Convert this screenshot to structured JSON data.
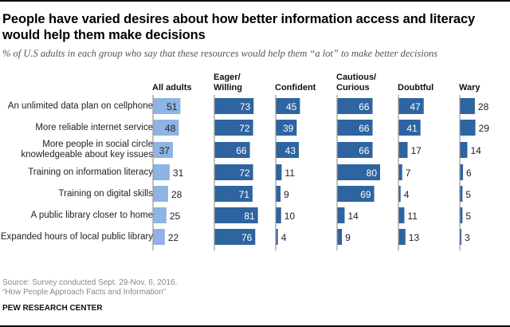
{
  "header": {
    "title": "People have varied desires about how better information access and literacy would help them make decisions",
    "subtitle": "% of U.S adults in each group who say that these resources would help them “a lot” to make better decisions"
  },
  "footer": {
    "source_line1": "Source: Survey conducted Sept. 29-Nov. 6, 2016.",
    "source_line2": "“How People Approach Facts and Information”",
    "brand": "PEW RESEARCH CENTER"
  },
  "colors": {
    "all_adults_bar": "#8db4e2",
    "group_bar": "#2e64a0",
    "axis": "#999999"
  },
  "chart_data": {
    "type": "bar",
    "orientation": "horizontal-small-multiples",
    "title": "People have varied desires about how better information access and literacy would help them make decisions",
    "subtitle": "% of U.S adults in each group who say that these resources would help them “a lot” to make better decisions",
    "xlabel": "",
    "ylabel": "",
    "xlim": [
      0,
      100
    ],
    "grid": false,
    "categories": [
      "An unlimited data plan on cellphone",
      "More reliable internet service",
      "More people in social circle knowledgeable about key issues",
      "Training on information literacy",
      "Training on digital skills",
      "A public library closer to home",
      "Expanded hours of local public library"
    ],
    "category_lines": [
      [
        "An unlimited data plan on cellphone"
      ],
      [
        "More reliable internet service"
      ],
      [
        "More people in social circle",
        "knowledgeable about key issues"
      ],
      [
        "Training on information literacy"
      ],
      [
        "Training on digital skills"
      ],
      [
        "A public library closer to home"
      ],
      [
        "Expanded hours of local public library"
      ]
    ],
    "series": [
      {
        "name": "All adults",
        "name_lines": [
          "All adults"
        ],
        "values": [
          51,
          48,
          37,
          31,
          28,
          25,
          22
        ]
      },
      {
        "name": "Eager/Willing",
        "name_lines": [
          "Eager/",
          "Willing"
        ],
        "values": [
          73,
          72,
          66,
          72,
          71,
          81,
          76
        ]
      },
      {
        "name": "Confident",
        "name_lines": [
          "Confident"
        ],
        "values": [
          45,
          39,
          43,
          11,
          9,
          10,
          4
        ]
      },
      {
        "name": "Cautious/Curious",
        "name_lines": [
          "Cautious/",
          "Curious"
        ],
        "values": [
          66,
          66,
          66,
          80,
          69,
          14,
          9
        ]
      },
      {
        "name": "Doubtful",
        "name_lines": [
          "Doubtful"
        ],
        "values": [
          47,
          41,
          17,
          7,
          4,
          11,
          13
        ]
      },
      {
        "name": "Wary",
        "name_lines": [
          "Wary"
        ],
        "values": [
          28,
          29,
          14,
          6,
          5,
          5,
          3
        ]
      }
    ]
  }
}
